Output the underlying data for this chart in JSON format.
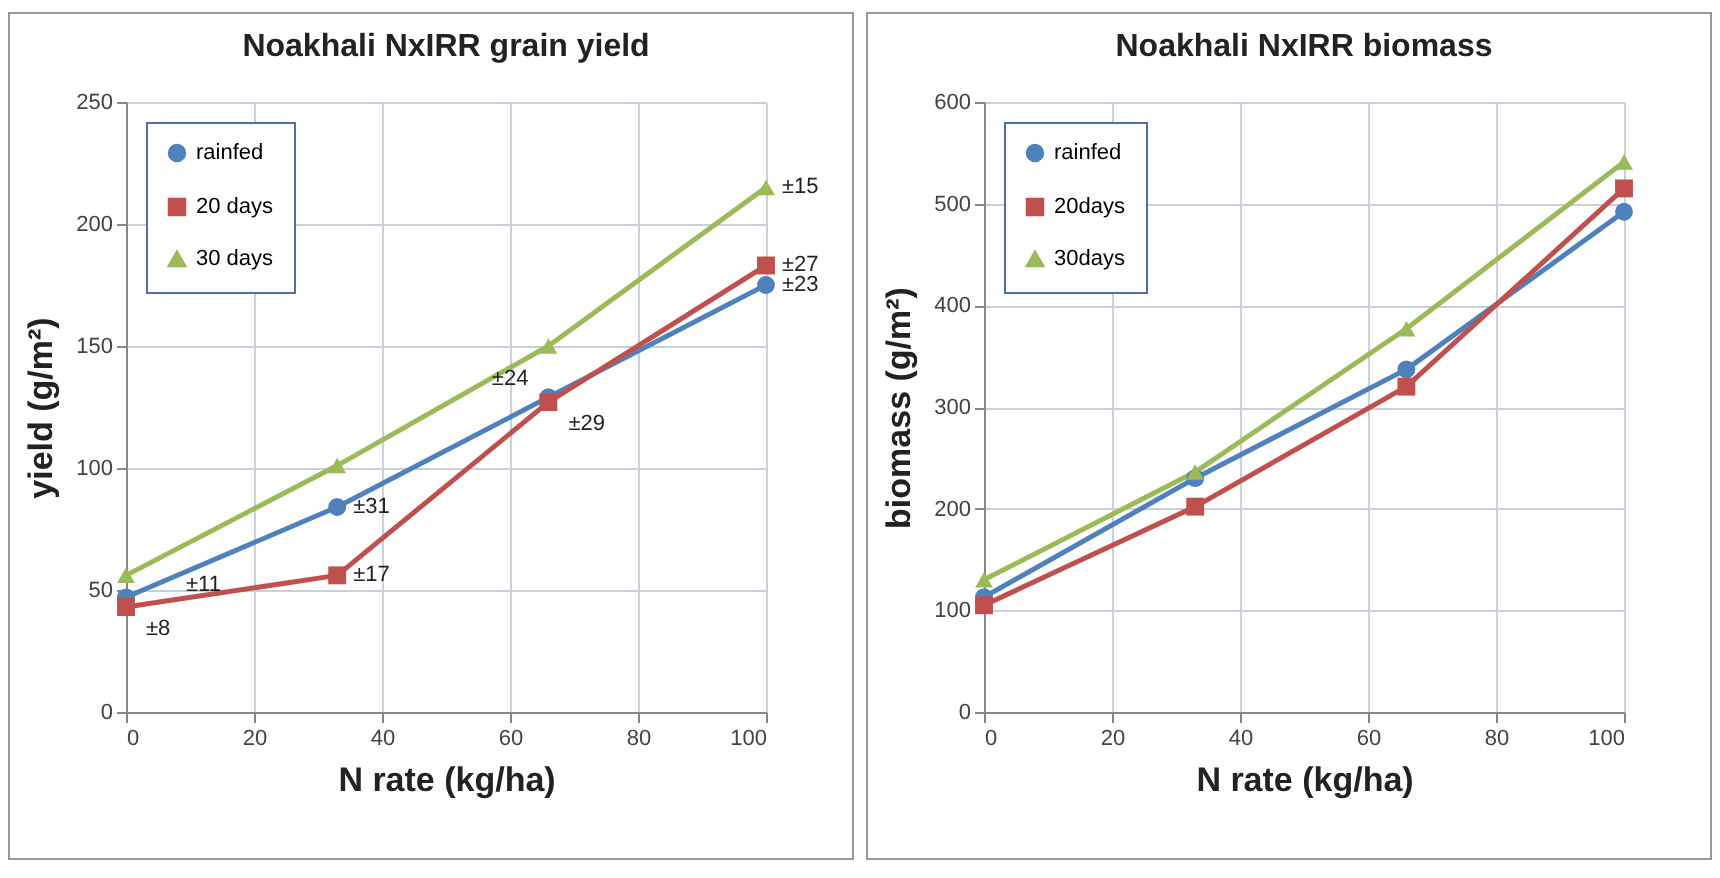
{
  "chart_data": [
    {
      "type": "line",
      "title": "Noakhali NxIRR grain yield",
      "xlabel": "N rate (kg/ha)",
      "ylabel": "yield (g/m²)",
      "x": [
        0,
        33,
        66,
        100
      ],
      "series": [
        {
          "name": "rainfed",
          "color": "#4f81bd",
          "marker": "circle",
          "values": [
            47,
            84,
            129,
            175
          ]
        },
        {
          "name": "20 days",
          "color": "#c0504d",
          "marker": "square",
          "values": [
            43,
            56,
            127,
            183
          ]
        },
        {
          "name": "30 days",
          "color": "#9bbb59",
          "marker": "triangle",
          "values": [
            56,
            101,
            150,
            215
          ]
        }
      ],
      "annotations": [
        {
          "text": "±11",
          "x": 0,
          "y": 47
        },
        {
          "text": "±8",
          "x": 0,
          "y": 43
        },
        {
          "text": "±31",
          "x": 33,
          "y": 84
        },
        {
          "text": "±17",
          "x": 33,
          "y": 56
        },
        {
          "text": "±24",
          "x": 66,
          "y": 129
        },
        {
          "text": "±29",
          "x": 66,
          "y": 127
        },
        {
          "text": "±15",
          "x": 100,
          "y": 215
        },
        {
          "text": "±27",
          "x": 100,
          "y": 183
        },
        {
          "text": "±23",
          "x": 100,
          "y": 175
        }
      ],
      "xlim": [
        0,
        100
      ],
      "xticks": [
        0,
        20,
        40,
        60,
        80,
        100
      ],
      "ylim": [
        0,
        250
      ],
      "yticks": [
        0,
        50,
        100,
        150,
        200,
        250
      ],
      "grid": true,
      "legend": "top left",
      "line_style": "solid"
    },
    {
      "type": "line",
      "title": "Noakhali NxIRR biomass",
      "xlabel": "N rate (kg/ha)",
      "ylabel": "biomass (g/m²)",
      "x": [
        0,
        33,
        66,
        100
      ],
      "series": [
        {
          "name": "rainfed",
          "color": "#4f81bd",
          "marker": "circle",
          "values": [
            113,
            230,
            337,
            492
          ]
        },
        {
          "name": "20days",
          "color": "#c0504d",
          "marker": "square",
          "values": [
            105,
            202,
            320,
            515
          ]
        },
        {
          "name": "30days",
          "color": "#9bbb59",
          "marker": "triangle",
          "values": [
            130,
            236,
            377,
            541
          ]
        }
      ],
      "xlim": [
        0,
        100
      ],
      "xticks": [
        0,
        20,
        40,
        60,
        80,
        100
      ],
      "ylim": [
        0,
        600
      ],
      "yticks": [
        0,
        100,
        200,
        300,
        400,
        500,
        600
      ],
      "grid": true,
      "legend": "top left",
      "line_style": "solid"
    }
  ]
}
